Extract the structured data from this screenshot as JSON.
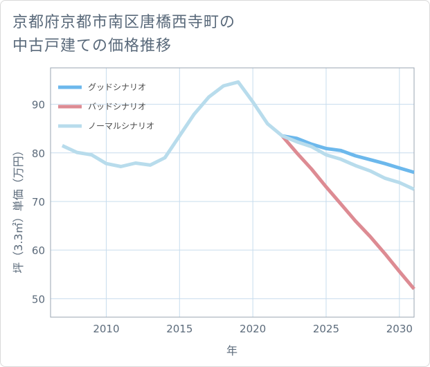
{
  "title_line1": "京都府京都市南区唐橋西寺町の",
  "title_line2": "中古戸建ての価格推移",
  "chart_data": {
    "type": "line",
    "xlabel": "年",
    "ylabel": "坪（3.3㎡）単価（万円）",
    "xlim": [
      2006.2,
      2031
    ],
    "ylim": [
      46.2,
      97.5
    ],
    "xticks": [
      2010,
      2015,
      2020,
      2025,
      2030
    ],
    "yticks": [
      50,
      60,
      70,
      80,
      90
    ],
    "grid": true,
    "legend_position": "top-left",
    "series": [
      {
        "name": "グッドシナリオ",
        "color": "#6cb8ec",
        "x": [
          2022,
          2023,
          2024,
          2025,
          2026,
          2027,
          2028,
          2029,
          2030,
          2031
        ],
        "y": [
          83.5,
          83.0,
          81.8,
          80.9,
          80.5,
          79.4,
          78.6,
          77.8,
          76.9,
          76.0
        ]
      },
      {
        "name": "バッドシナリオ",
        "color": "#dd8b93",
        "x": [
          2022,
          2023,
          2024,
          2025,
          2026,
          2027,
          2028,
          2029,
          2030,
          2031
        ],
        "y": [
          83.5,
          80.0,
          76.7,
          73.0,
          69.5,
          66.0,
          62.8,
          59.3,
          55.6,
          52.0
        ]
      },
      {
        "name": "ノーマルシナリオ",
        "color": "#b8dcec",
        "x": [
          2007,
          2008,
          2009,
          2010,
          2011,
          2012,
          2013,
          2014,
          2015,
          2016,
          2017,
          2018,
          2019,
          2020,
          2021,
          2022,
          2023,
          2024,
          2025,
          2026,
          2027,
          2028,
          2029,
          2030,
          2031
        ],
        "y": [
          81.5,
          80.1,
          79.6,
          77.8,
          77.2,
          77.9,
          77.5,
          79.0,
          83.5,
          88.0,
          91.5,
          93.8,
          94.6,
          90.5,
          86.0,
          83.5,
          82.3,
          81.3,
          79.6,
          78.7,
          77.4,
          76.3,
          74.8,
          73.9,
          72.5
        ]
      }
    ]
  }
}
